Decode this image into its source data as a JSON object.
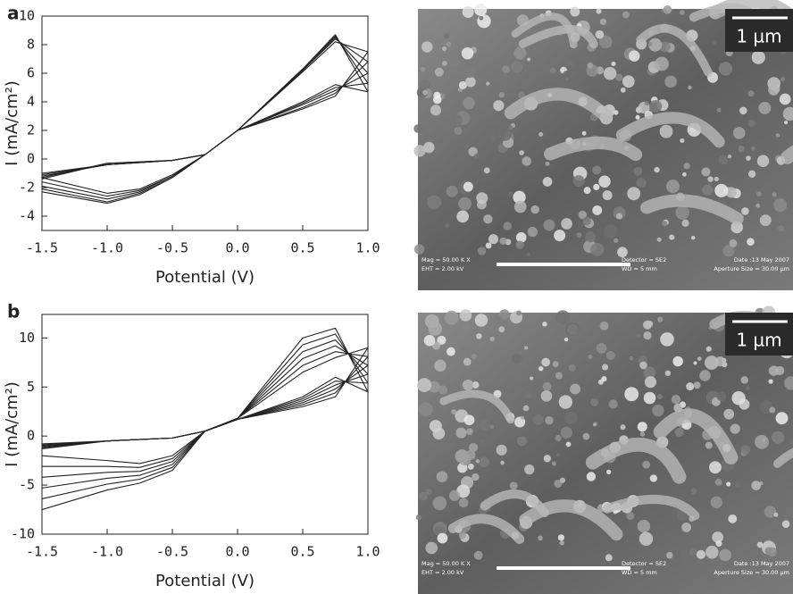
{
  "chart_data": [
    {
      "type": "line",
      "panel": "a",
      "xlabel": "Potential (V)",
      "ylabel": "I (mA/cm²)",
      "x": [
        -1.5,
        -1.0,
        -0.5,
        -0.25,
        0,
        0.5,
        0.75,
        1.0,
        0.75,
        0.5,
        0,
        -0.25,
        -0.5,
        -0.75,
        -1.0,
        -1.5
      ],
      "series": [
        {
          "color": "#222222",
          "values": [
            -1.0,
            -0.4,
            -0.1,
            0.3,
            2.0,
            6.1,
            8.2,
            7.5,
            4.4,
            3.5,
            2.0,
            0.3,
            -1.1,
            -2.1,
            -2.4,
            -1.3
          ]
        },
        {
          "color": "#222222",
          "values": [
            -1.1,
            -0.4,
            -0.1,
            0.3,
            2.0,
            6.2,
            8.4,
            6.8,
            4.6,
            3.6,
            2.0,
            0.3,
            -1.2,
            -2.2,
            -2.6,
            -1.6
          ]
        },
        {
          "color": "#222222",
          "values": [
            -1.2,
            -0.4,
            -0.1,
            0.3,
            2.0,
            6.2,
            8.5,
            6.0,
            4.8,
            3.8,
            2.0,
            0.3,
            -1.2,
            -2.3,
            -2.8,
            -1.9
          ]
        },
        {
          "color": "#222222",
          "values": [
            -1.3,
            -0.3,
            -0.1,
            0.3,
            2.0,
            6.3,
            8.6,
            5.3,
            5.0,
            3.9,
            2.0,
            0.3,
            -1.3,
            -2.4,
            -3.0,
            -2.1
          ]
        },
        {
          "color": "#222222",
          "values": [
            -1.4,
            -0.3,
            -0.1,
            0.3,
            2.0,
            6.3,
            8.7,
            4.7,
            5.2,
            4.0,
            2.0,
            0.3,
            -1.3,
            -2.5,
            -3.1,
            -2.3
          ]
        }
      ],
      "xlim": [
        -1.5,
        1.0
      ],
      "xticks": [
        -1.5,
        {
          "value": -1.0,
          "label": "-1.0"
        },
        -0.5,
        {
          "value": 0,
          "label": "0.0"
        },
        0.5,
        {
          "value": 1.0,
          "label": "1.0"
        }
      ],
      "ylim": [
        -5,
        10
      ],
      "yticks": [
        -4,
        -2,
        0,
        2,
        4,
        6,
        8,
        10
      ]
    },
    {
      "type": "line",
      "panel": "b",
      "xlabel": "Potential (V)",
      "ylabel": "I (mA/cm²)",
      "x": [
        -1.5,
        -1.0,
        -0.5,
        -0.25,
        0,
        0.5,
        0.75,
        1.0,
        0.75,
        0.5,
        0,
        -0.25,
        -0.5,
        -0.75,
        -1.0,
        -1.5
      ],
      "series": [
        {
          "color": "#222222",
          "values": [
            -0.8,
            -0.5,
            -0.2,
            0.5,
            1.8,
            6.5,
            8.0,
            9.0,
            4.0,
            3.0,
            1.7,
            0.5,
            -2.0,
            -2.8,
            -2.5,
            -2.0
          ]
        },
        {
          "color": "#222222",
          "values": [
            -0.9,
            -0.5,
            -0.2,
            0.5,
            1.8,
            7.2,
            8.6,
            8.1,
            4.4,
            3.2,
            1.7,
            0.5,
            -2.3,
            -3.2,
            -3.1,
            -3.1
          ]
        },
        {
          "color": "#222222",
          "values": [
            -1.0,
            -0.5,
            -0.2,
            0.5,
            1.8,
            7.9,
            9.2,
            7.2,
            4.8,
            3.4,
            1.7,
            0.5,
            -2.6,
            -3.6,
            -3.7,
            -4.2
          ]
        },
        {
          "color": "#222222",
          "values": [
            -1.1,
            -0.5,
            -0.2,
            0.5,
            1.8,
            8.6,
            9.8,
            6.3,
            5.2,
            3.6,
            1.7,
            0.5,
            -2.9,
            -4.0,
            -4.3,
            -5.3
          ]
        },
        {
          "color": "#222222",
          "values": [
            -1.2,
            -0.5,
            -0.2,
            0.5,
            1.8,
            9.3,
            10.4,
            5.4,
            5.6,
            3.8,
            1.7,
            0.5,
            -3.2,
            -4.4,
            -4.9,
            -6.4
          ]
        },
        {
          "color": "#222222",
          "values": [
            -1.3,
            -0.5,
            -0.2,
            0.5,
            1.8,
            10.0,
            11.0,
            4.5,
            6.0,
            4.0,
            1.7,
            0.5,
            -3.5,
            -4.8,
            -5.5,
            -7.5
          ]
        }
      ],
      "xlim": [
        -1.5,
        1.0
      ],
      "xticks": [
        -1.5,
        {
          "value": -1.0,
          "label": "-1.0"
        },
        -0.5,
        {
          "value": 0,
          "label": "0.0"
        },
        0.5,
        {
          "value": 1.0,
          "label": "1.0"
        }
      ],
      "ylim": [
        -10,
        12.4
      ],
      "yticks": [
        -10,
        -5,
        0,
        5,
        10
      ]
    }
  ],
  "images": [
    {
      "scale_bar": "1 µm",
      "info_left": [
        "Mag = 50.00 K X",
        "EHT = 2.00 kV"
      ],
      "info_right": [
        "Detector = SE2",
        "WD = 5 mm"
      ],
      "info_far": [
        "Date :13 May 2007",
        "Aperture Size = 30.00 µm"
      ]
    },
    {
      "scale_bar": "1 µm",
      "info_left": [
        "Mag = 50.00 K X",
        "EHT = 2.00 kV"
      ],
      "info_right": [
        "Detector = SE2",
        "WD = 5 mm"
      ],
      "info_far": [
        "Date :13 May 2007",
        "Aperture Size = 30.00 µm"
      ]
    }
  ]
}
